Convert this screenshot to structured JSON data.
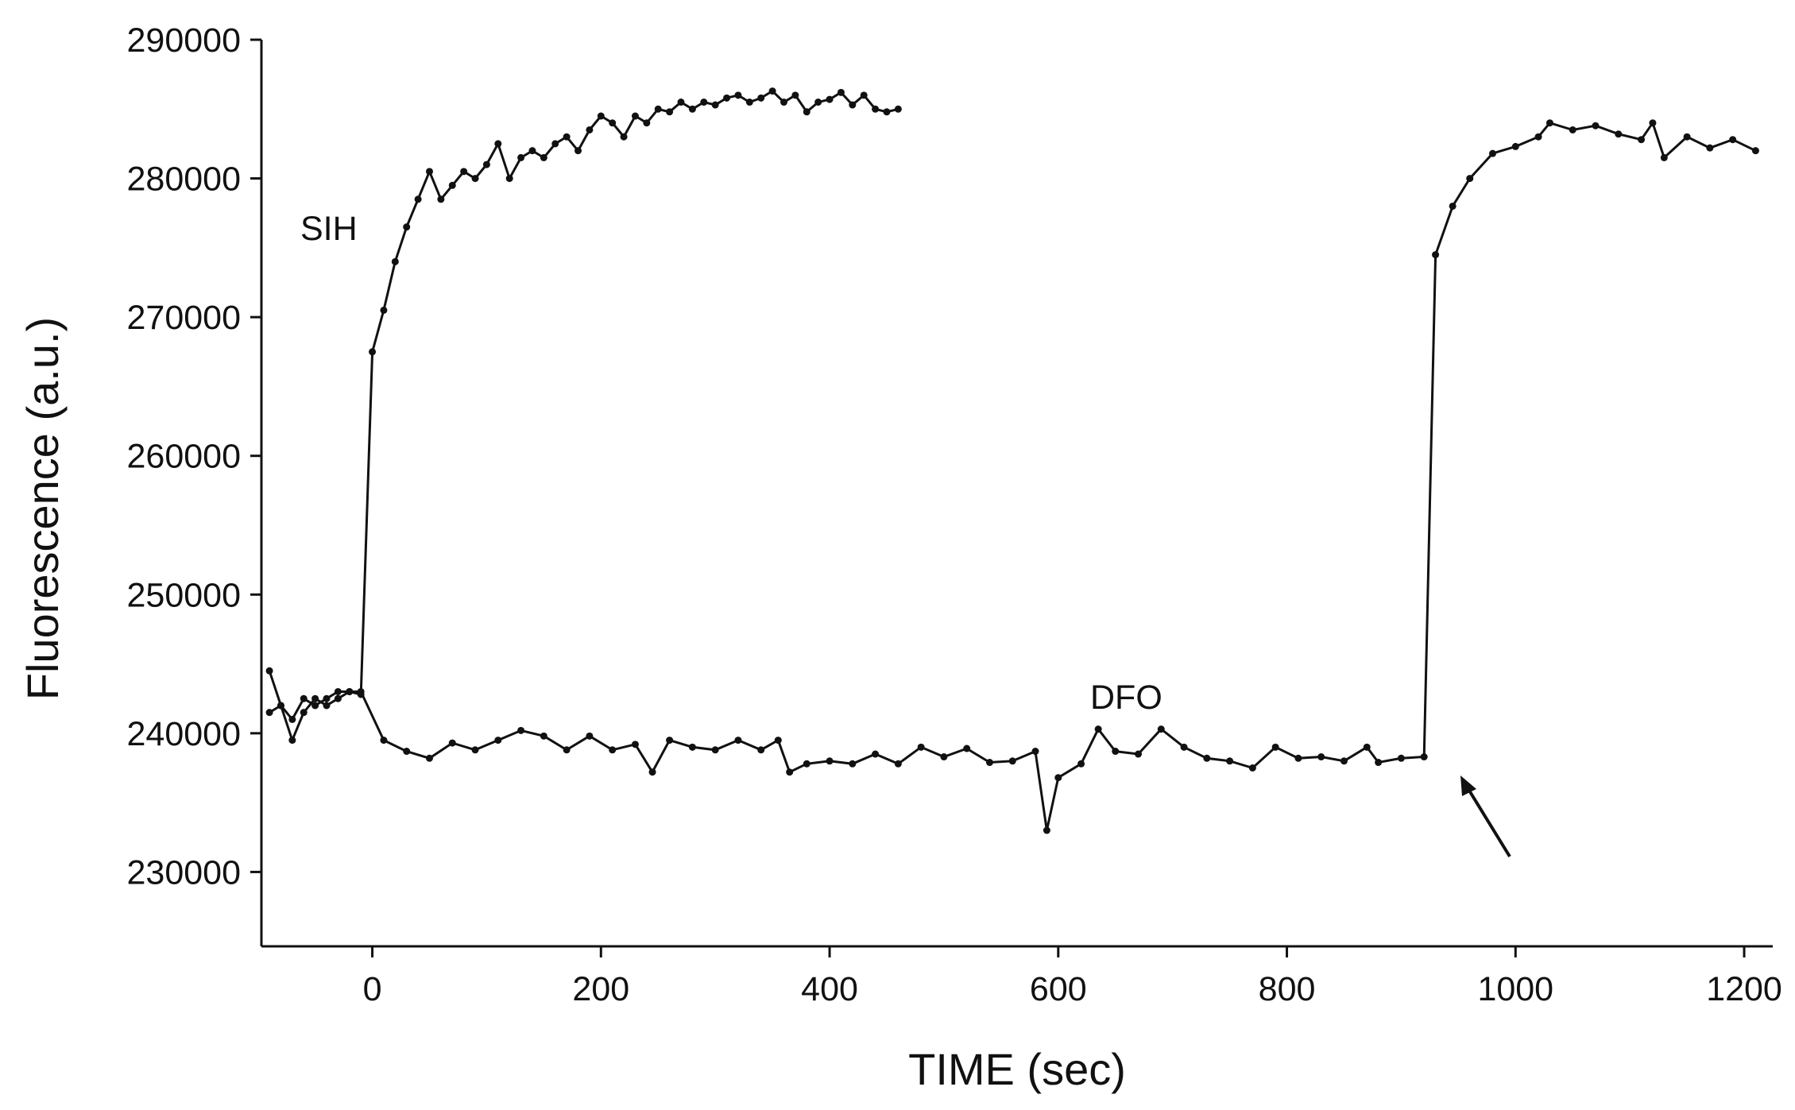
{
  "chart_data": {
    "type": "line",
    "xlabel": "TIME (sec)",
    "ylabel": "Fluorescence (a.u.)",
    "xlim": [
      -97,
      1225
    ],
    "ylim": [
      224640,
      290000
    ],
    "xticks": [
      0,
      200,
      400,
      600,
      800,
      1000,
      1200
    ],
    "yticks": [
      230000,
      240000,
      250000,
      260000,
      270000,
      280000,
      290000
    ],
    "annotations": [
      "SIH",
      "DFO"
    ],
    "series": [
      {
        "name": "SIH",
        "color": "#111111",
        "x": [
          -90,
          -80,
          -70,
          -60,
          -50,
          -40,
          -30,
          -20,
          -10,
          0,
          10,
          20,
          30,
          40,
          50,
          60,
          70,
          80,
          90,
          100,
          110,
          120,
          130,
          140,
          150,
          160,
          170,
          180,
          190,
          200,
          210,
          220,
          230,
          240,
          250,
          260,
          270,
          280,
          290,
          300,
          310,
          320,
          330,
          340,
          350,
          360,
          370,
          380,
          390,
          400,
          410,
          420,
          430,
          440,
          450,
          460
        ],
        "values": [
          241500,
          242000,
          241000,
          242500,
          242000,
          242500,
          243000,
          243000,
          242800,
          267500,
          270500,
          274000,
          276500,
          278500,
          280500,
          278500,
          279500,
          280500,
          280000,
          281000,
          282500,
          280000,
          281500,
          282000,
          281500,
          282500,
          283000,
          282000,
          283500,
          284500,
          284000,
          283000,
          284500,
          284000,
          285000,
          284800,
          285500,
          285000,
          285500,
          285300,
          285800,
          286000,
          285500,
          285800,
          286300,
          285500,
          286000,
          284800,
          285500,
          285700,
          286200,
          285300,
          286000,
          285000,
          284800,
          285000
        ]
      },
      {
        "name": "DFO",
        "color": "#111111",
        "x": [
          -90,
          -80,
          -70,
          -60,
          -50,
          -40,
          -30,
          -20,
          -10,
          10,
          30,
          50,
          70,
          90,
          110,
          130,
          150,
          170,
          190,
          210,
          230,
          245,
          260,
          280,
          300,
          320,
          340,
          355,
          365,
          380,
          400,
          420,
          440,
          460,
          480,
          500,
          520,
          540,
          560,
          580,
          590,
          600,
          620,
          635,
          650,
          670,
          690,
          710,
          730,
          750,
          770,
          790,
          810,
          830,
          850,
          870,
          880,
          900,
          920,
          930,
          945,
          960,
          980,
          1000,
          1020,
          1030,
          1050,
          1070,
          1090,
          1110,
          1120,
          1130,
          1150,
          1170,
          1190,
          1210
        ],
        "values": [
          244500,
          242000,
          239500,
          241500,
          242500,
          242000,
          242500,
          243000,
          243000,
          239500,
          238700,
          238200,
          239300,
          238800,
          239500,
          240200,
          239800,
          238800,
          239800,
          238800,
          239200,
          237200,
          239500,
          239000,
          238800,
          239500,
          238800,
          239500,
          237200,
          237800,
          238000,
          237800,
          238500,
          237800,
          239000,
          238300,
          238900,
          237900,
          238000,
          238700,
          233000,
          236800,
          237800,
          240300,
          238700,
          238500,
          240300,
          239000,
          238200,
          238000,
          237500,
          239000,
          238200,
          238300,
          238000,
          239000,
          237900,
          238200,
          238300,
          274500,
          278000,
          280000,
          281800,
          282300,
          283000,
          284000,
          283500,
          283800,
          283200,
          282800,
          284000,
          281500,
          283000,
          282200,
          282800,
          282000
        ]
      }
    ]
  }
}
